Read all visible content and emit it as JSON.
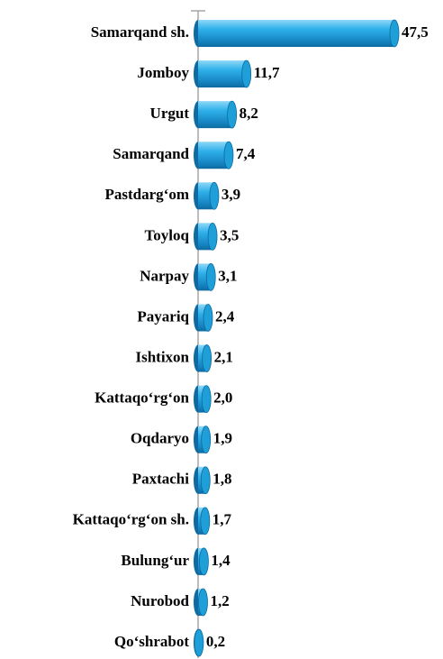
{
  "chart_data": {
    "type": "bar",
    "orientation": "horizontal",
    "color": "#1e9fd8",
    "categories": [
      "Samarqand sh.",
      "Jomboy",
      "Urgut",
      "Samarqand",
      "Pastdarg‘om",
      "Toyloq",
      "Narpay",
      "Payariq",
      "Ishtixon",
      "Kattaqo‘rg‘on",
      "Oqdaryo",
      "Paxtachi",
      "Kattaqo‘rg‘on sh.",
      "Bulung‘ur",
      "Nurobod",
      "Qo‘shrabot"
    ],
    "values": [
      47.5,
      11.7,
      8.2,
      7.4,
      3.9,
      3.5,
      3.1,
      2.4,
      2.1,
      2.0,
      1.9,
      1.8,
      1.7,
      1.4,
      1.2,
      0.2
    ],
    "value_labels": [
      "47,5",
      "11,7",
      "8,2",
      "7,4",
      "3,9",
      "3,5",
      "3,1",
      "2,4",
      "2,1",
      "2,0",
      "1,9",
      "1,8",
      "1,7",
      "1,4",
      "1,2",
      "0,2"
    ]
  }
}
